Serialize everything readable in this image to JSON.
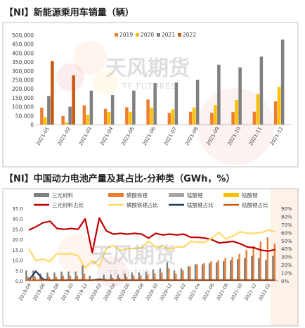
{
  "titles": {
    "chart1": "【NI】新能源乘用车销量（辆）",
    "chart2": "【NI】中国动力电池产量及其占比-分种类（GWh，%）"
  },
  "watermark": {
    "main": "天风期货",
    "sub": "TF FUTURES"
  },
  "colors": {
    "s2019": "#ED7D31",
    "s2020": "#FFC000",
    "s2021": "#7F7F7F",
    "s2022": "#C55A11",
    "ternary": "#7F7F7F",
    "lfp": "#ED7D31",
    "lmo": "#A5A5A5",
    "lco": "#FFC000",
    "ternary_pct": "#C00000",
    "lfp_pct": "#FFD966",
    "lmo_pct": "#203864",
    "lco_pct": "#C55A11"
  },
  "chart_data": [
    {
      "type": "bar",
      "title": "新能源乘用车销量（辆）",
      "categories": [
        "2021-01",
        "2021-02",
        "2021-03",
        "2021-04",
        "2021-05",
        "2021-06",
        "2021-07",
        "2021-08",
        "2021-09",
        "2021-10",
        "2021-11",
        "2021-12"
      ],
      "series": [
        {
          "name": "2019",
          "values": [
            95000,
            48000,
            108000,
            88000,
            97000,
            140000,
            65000,
            72000,
            65000,
            70000,
            72000,
            130000
          ]
        },
        {
          "name": "2020",
          "values": [
            42000,
            12000,
            55000,
            70000,
            72000,
            95000,
            85000,
            95000,
            110000,
            138000,
            170000,
            210000
          ]
        },
        {
          "name": "2021",
          "values": [
            160000,
            100000,
            190000,
            165000,
            190000,
            232000,
            235000,
            250000,
            335000,
            320000,
            380000,
            475000
          ]
        },
        {
          "name": "2022",
          "values": [
            355000,
            275000,
            null,
            null,
            null,
            null,
            null,
            null,
            null,
            null,
            null,
            null
          ]
        }
      ],
      "ylim": [
        0,
        500000
      ],
      "yticks": [
        "0",
        "50,000",
        "100,000",
        "150,000",
        "200,000",
        "250,000",
        "300,000",
        "350,000",
        "400,000",
        "450,000",
        "500,000"
      ],
      "legend": "top",
      "grid": false
    },
    {
      "type": "bar",
      "title": "中国动力电池产量及其占比-分种类（GWh，%）",
      "categories": [
        "2019-04",
        "2019-05",
        "2019-06",
        "2019-07",
        "2019-08",
        "2019-09",
        "2019-10",
        "2019-11",
        "2019-12",
        "2020-01",
        "2020-02",
        "2020-03",
        "2020-04",
        "2020-05",
        "2020-06",
        "2020-07",
        "2020-08",
        "2020-09",
        "2020-10",
        "2020-11",
        "2020-12",
        "2021-01",
        "2021-02",
        "2021-03",
        "2021-04",
        "2021-05",
        "2021-06",
        "2021-07",
        "2021-08",
        "2021-09",
        "2021-10",
        "2021-11",
        "2021-12",
        "2022-01",
        "2022-02",
        "2022-03"
      ],
      "xtick_labels": [
        "2019-04",
        "2019-06",
        "2019-08",
        "2019-10",
        "2019-12",
        "2020-02",
        "2020-04",
        "2020-06",
        "2020-08",
        "2020-10",
        "2020-12",
        "2021-02",
        "2021-04",
        "2021-06",
        "2021-08",
        "2021-10",
        "2021-12",
        "2022-02"
      ],
      "bar_series": [
        {
          "name": "三元材料",
          "values": [
            5,
            5,
            3.5,
            4,
            4,
            4.5,
            4.5,
            4.5,
            7.5,
            2.5,
            0.5,
            3,
            3,
            3,
            3.5,
            4,
            4,
            4.5,
            5.5,
            6,
            9,
            5,
            6,
            7,
            8,
            8,
            8.5,
            9,
            9.5,
            10,
            10.5,
            11,
            12,
            11,
            10,
            12
          ]
        },
        {
          "name": "磷酸铁锂",
          "values": [
            2,
            2,
            1.5,
            2,
            2,
            2.5,
            2.5,
            2.5,
            3.5,
            0.5,
            0.2,
            1,
            1.5,
            1.5,
            2,
            2.5,
            2.5,
            3,
            3.5,
            4,
            6,
            3.5,
            5,
            7,
            8,
            8.5,
            9.5,
            10,
            11,
            11.5,
            13,
            15,
            17,
            19,
            21,
            18
          ]
        },
        {
          "name": "锰酸锂",
          "values": [
            0.2,
            0.2,
            0.2,
            0.2,
            0.2,
            0.2,
            0.2,
            0.2,
            0.2,
            0.1,
            0,
            0.1,
            0.1,
            0.1,
            0.1,
            0.1,
            0.1,
            0.1,
            0.1,
            0.1,
            0.1,
            0.1,
            0.1,
            0.1,
            0.1,
            0.1,
            0.1,
            0.1,
            0.1,
            0.1,
            0.1,
            0.1,
            0.1,
            0.1,
            0.1,
            0.1
          ]
        },
        {
          "name": "钴酸锂",
          "values": [
            0.1,
            0.1,
            0.1,
            0.1,
            0.1,
            0.1,
            0.1,
            0.1,
            0.1,
            0,
            0,
            0.1,
            0.1,
            0.1,
            0.1,
            0.1,
            0.1,
            0.1,
            0.1,
            0.1,
            0.1,
            0.1,
            0.1,
            0.1,
            0.1,
            0.1,
            0.1,
            0.1,
            0.1,
            0.1,
            0.1,
            0.1,
            0.1,
            0.1,
            0.1,
            0.1
          ]
        }
      ],
      "line_series": [
        {
          "name": "三元材料占比",
          "values": [
            63,
            67,
            72,
            74,
            65,
            64,
            65,
            64,
            77,
            35,
            78,
            62,
            58,
            59,
            58,
            59,
            58,
            53,
            59,
            57,
            58,
            57,
            58,
            54,
            54,
            53,
            51,
            47,
            48,
            49,
            46,
            42,
            41,
            38,
            37,
            39
          ]
        },
        {
          "name": "磷酸铁锂占比",
          "values": [
            40,
            25,
            27,
            24,
            34,
            33,
            34,
            31,
            16,
            25,
            18,
            40,
            44,
            38,
            40,
            40,
            41,
            49,
            42,
            43,
            39,
            42,
            42,
            49,
            48,
            48,
            53,
            60,
            52,
            56,
            61,
            59,
            59,
            60,
            63,
            61
          ]
        },
        {
          "name": "锰酸锂占比",
          "values": [
            1,
            12,
            2,
            1,
            1,
            1,
            1,
            1,
            1,
            1,
            2,
            1,
            1,
            1,
            1,
            1,
            1,
            1,
            1,
            1,
            1,
            1,
            1,
            1,
            1,
            1,
            1,
            1,
            1,
            1,
            1,
            1,
            1,
            1,
            1,
            1
          ]
        },
        {
          "name": "钴酸锂占比",
          "values": [
            1,
            1,
            1,
            1,
            1,
            1,
            1,
            1,
            1,
            1,
            1,
            1,
            1,
            1,
            1,
            1,
            1,
            1,
            1,
            1,
            1,
            1,
            1,
            1,
            1,
            1,
            1,
            1,
            1,
            1,
            1,
            1,
            1,
            1,
            1,
            1
          ]
        }
      ],
      "ylim_left": [
        0,
        35
      ],
      "yticks_left": [
        "0.0",
        "5.0",
        "10.0",
        "15.0",
        "20.0",
        "25.0",
        "30.0",
        "35.0"
      ],
      "ylim_right": [
        0,
        90
      ],
      "yticks_right": [
        "0%",
        "10%",
        "20%",
        "30%",
        "40%",
        "50%",
        "60%",
        "70%",
        "80%",
        "90%"
      ],
      "legend": "top",
      "grid": false
    }
  ]
}
